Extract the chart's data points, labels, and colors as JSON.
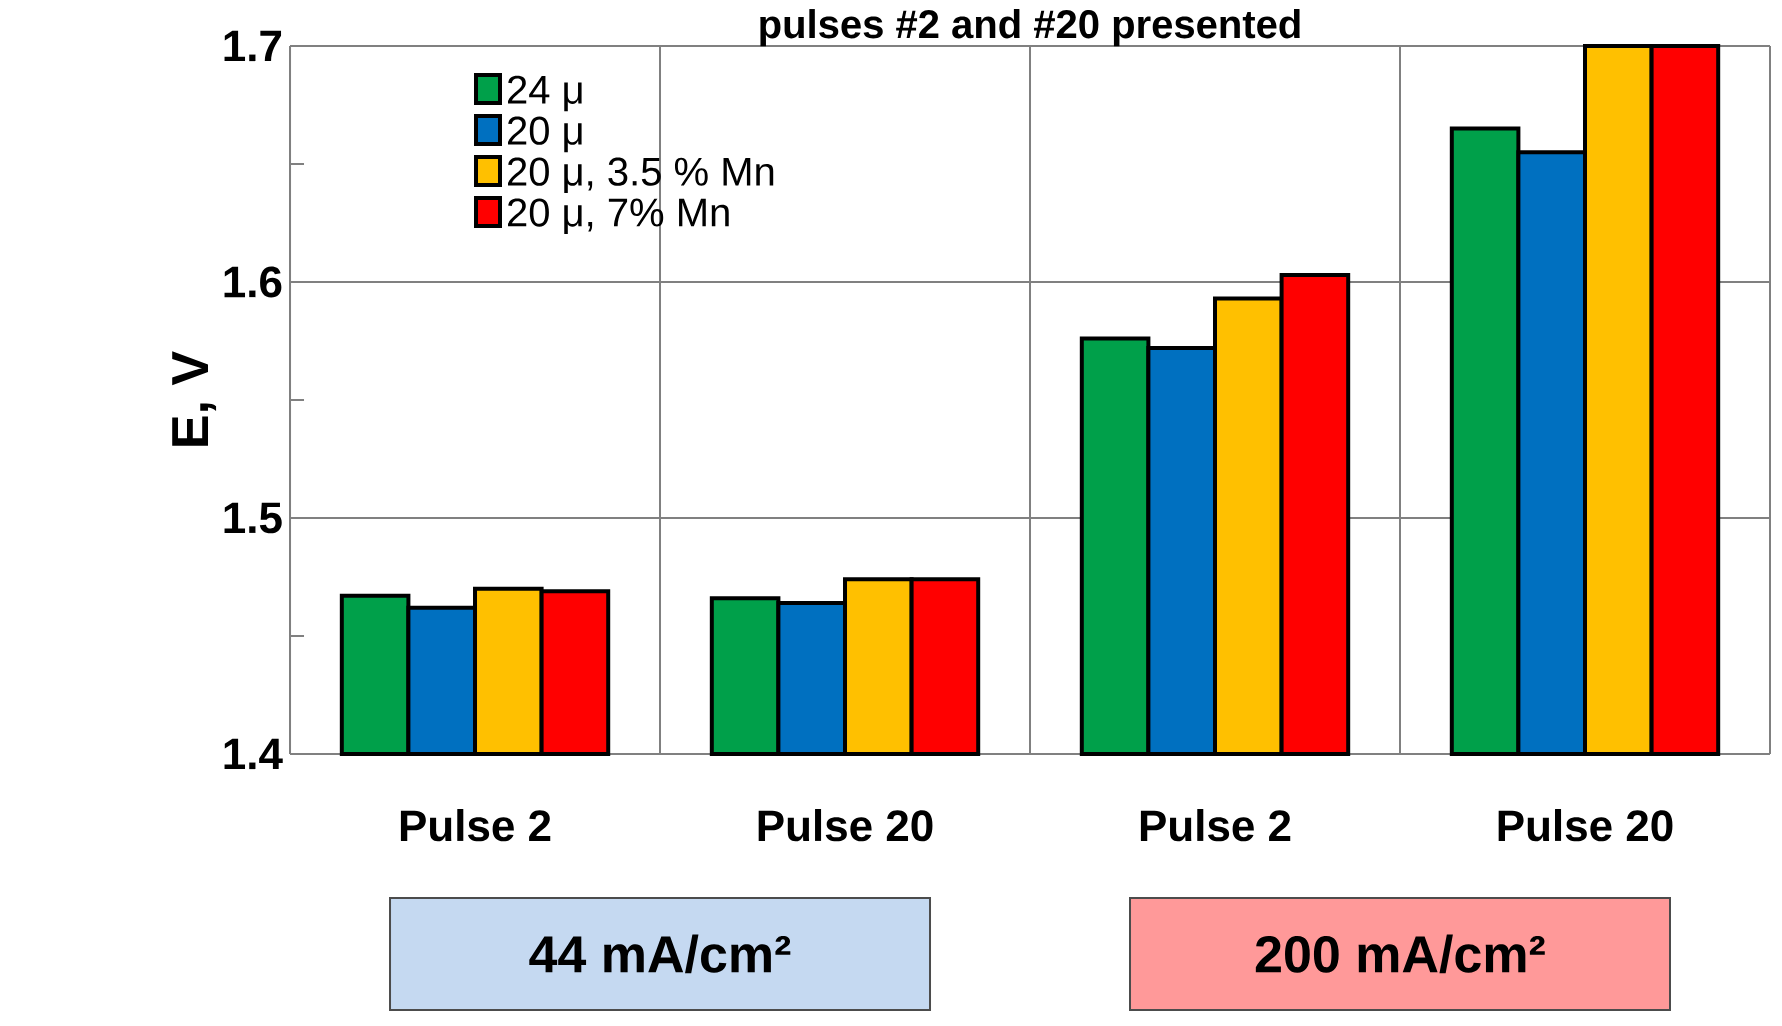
{
  "chart_data": {
    "type": "bar",
    "title": "pulses #2 and #20 presented",
    "ylabel": "E, V",
    "categories": [
      "Pulse 2",
      "Pulse 20",
      "Pulse 2",
      "Pulse 20"
    ],
    "series": [
      {
        "name": "24 μ",
        "color": "#00a04a",
        "values": [
          1.467,
          1.466,
          1.576,
          1.665
        ]
      },
      {
        "name": "20 μ",
        "color": "#0070c0",
        "values": [
          1.462,
          1.464,
          1.572,
          1.655
        ]
      },
      {
        "name": "20 μ, 3.5 % Mn",
        "color": "#ffc000",
        "values": [
          1.47,
          1.474,
          1.593,
          1.7
        ]
      },
      {
        "name": "20 μ, 7% Mn",
        "color": "#ff0000",
        "values": [
          1.469,
          1.474,
          1.603,
          1.7
        ]
      }
    ],
    "ylim": [
      1.4,
      1.7
    ],
    "yticks": [
      1.4,
      1.5,
      1.6,
      1.7
    ],
    "grid": true,
    "legend": "top left",
    "annotations": [
      "44 mA/cm²",
      "200 mA/cm²"
    ]
  }
}
